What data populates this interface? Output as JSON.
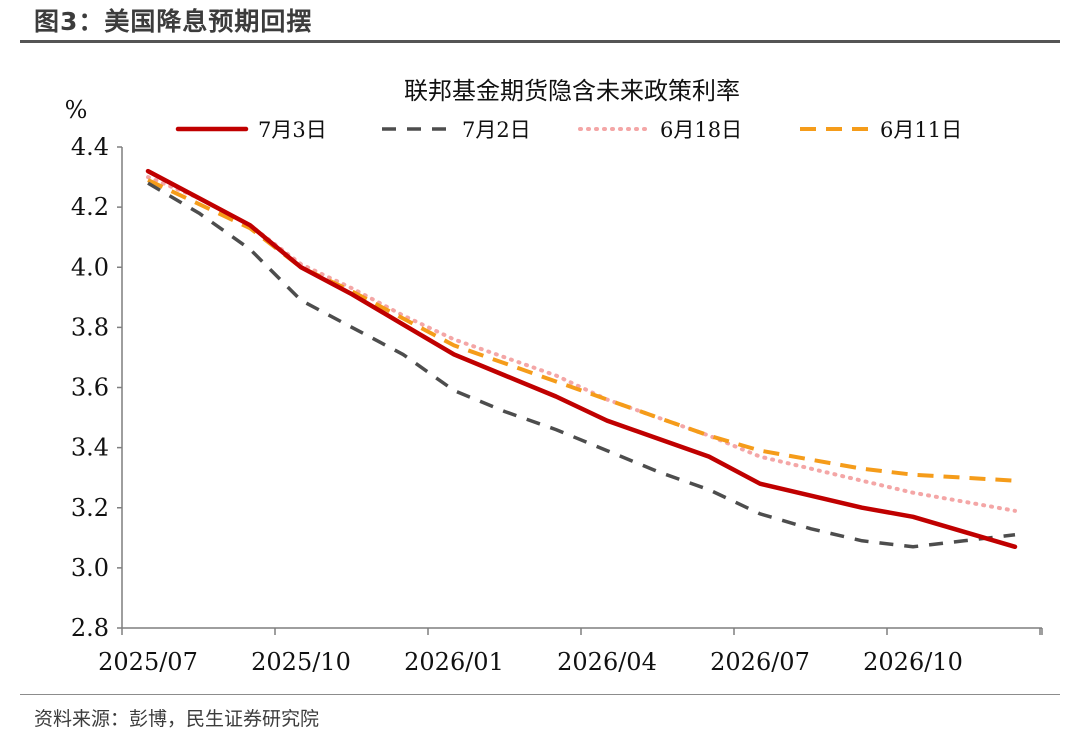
{
  "header": {
    "title": "图3：美国降息预期回摆"
  },
  "source": {
    "text": "资料来源：彭博，民生证券研究院"
  },
  "chart_data": {
    "type": "line",
    "title": "联邦基金期货隐含未来政策利率",
    "ylabel": "%",
    "xlabel": "",
    "ylim": [
      2.8,
      4.4
    ],
    "yticks": [
      "4.4",
      "4.2",
      "4.0",
      "3.8",
      "3.6",
      "3.4",
      "3.2",
      "3.0",
      "2.8"
    ],
    "ytick_values": [
      4.4,
      4.2,
      4.0,
      3.8,
      3.6,
      3.4,
      3.2,
      3.0,
      2.8
    ],
    "xticks": [
      "2025/07",
      "2025/10",
      "2026/01",
      "2026/04",
      "2026/07",
      "2026/10"
    ],
    "x": [
      "2025/07",
      "2025/08",
      "2025/09",
      "2025/10",
      "2025/11",
      "2025/12",
      "2026/01",
      "2026/02",
      "2026/03",
      "2026/04",
      "2026/05",
      "2026/06",
      "2026/07",
      "2026/08",
      "2026/09",
      "2026/10",
      "2026/11",
      "2026/12"
    ],
    "grid": false,
    "legend": "top",
    "series": [
      {
        "name": "7月3日",
        "color": "#c00000",
        "style": "solid",
        "values": [
          4.32,
          4.23,
          4.14,
          4.0,
          3.91,
          3.81,
          3.71,
          3.64,
          3.57,
          3.49,
          3.43,
          3.37,
          3.28,
          3.24,
          3.2,
          3.17,
          3.12,
          3.07
        ]
      },
      {
        "name": "7月2日",
        "color": "#4d4d4d",
        "style": "dashed",
        "values": [
          4.28,
          4.18,
          4.06,
          3.89,
          3.8,
          3.71,
          3.59,
          3.52,
          3.46,
          3.39,
          3.32,
          3.26,
          3.18,
          3.13,
          3.09,
          3.07,
          3.09,
          3.11
        ]
      },
      {
        "name": "6月18日",
        "color": "#f4a6a6",
        "style": "dotted",
        "values": [
          4.3,
          4.23,
          4.14,
          4.01,
          3.93,
          3.84,
          3.76,
          3.7,
          3.64,
          3.56,
          3.5,
          3.44,
          3.37,
          3.33,
          3.29,
          3.25,
          3.22,
          3.19
        ]
      },
      {
        "name": "6月11日",
        "color": "#f59c1a",
        "style": "dashed",
        "values": [
          4.29,
          4.21,
          4.13,
          4.0,
          3.92,
          3.83,
          3.74,
          3.68,
          3.62,
          3.56,
          3.5,
          3.44,
          3.39,
          3.36,
          3.33,
          3.31,
          3.3,
          3.29
        ]
      }
    ]
  }
}
